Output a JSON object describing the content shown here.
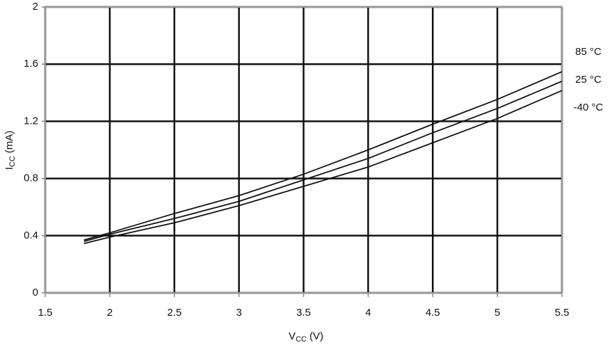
{
  "chart_data": {
    "type": "line",
    "xlabel": {
      "symbol": "V",
      "subscript": "CC",
      "unit": "(V)"
    },
    "ylabel": {
      "symbol": "I",
      "subscript": "CC",
      "unit": "(mA)"
    },
    "x": [
      1.8,
      2,
      2.5,
      3,
      3.5,
      4,
      4.5,
      5,
      5.5
    ],
    "series": [
      {
        "name": "85 °C",
        "color": "#111111",
        "values": [
          0.37,
          0.42,
          0.555,
          0.68,
          0.83,
          1.0,
          1.18,
          1.353,
          1.547
        ]
      },
      {
        "name": "25 °C",
        "color": "#111111",
        "values": [
          0.36,
          0.41,
          0.52,
          0.64,
          0.79,
          0.94,
          1.12,
          1.29,
          1.48
        ]
      },
      {
        "name": "-40 °C",
        "color": "#111111",
        "values": [
          0.345,
          0.39,
          0.49,
          0.61,
          0.745,
          0.88,
          1.05,
          1.22,
          1.415
        ]
      }
    ],
    "xlim": [
      1.5,
      5.5
    ],
    "xticks": [
      1.5,
      2,
      2.5,
      3,
      3.5,
      4,
      4.5,
      5,
      5.5
    ],
    "ylim": [
      0,
      2
    ],
    "yticks": [
      0,
      0.4,
      0.8,
      1.2,
      1.6,
      2
    ],
    "grid": true
  }
}
